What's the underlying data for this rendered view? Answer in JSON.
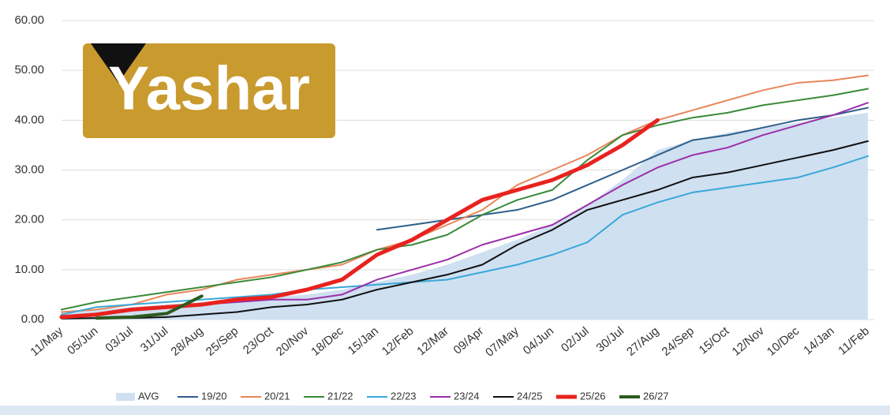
{
  "logo": "Yashar",
  "chart_data": {
    "type": "line",
    "categories": [
      "11/May",
      "05/Jun",
      "03/Jul",
      "31/Jul",
      "28/Aug",
      "25/Sep",
      "23/Oct",
      "20/Nov",
      "18/Dec",
      "15/Jan",
      "12/Feb",
      "12/Mar",
      "09/Apr",
      "07/May",
      "04/Jun",
      "02/Jul",
      "30/Jul",
      "27/Aug",
      "24/Sep",
      "15/Oct",
      "12/Nov",
      "10/Dec",
      "14/Jan",
      "11/Feb"
    ],
    "ylim": [
      0,
      60
    ],
    "yticks": [
      {
        "value": 0,
        "label": "0.00"
      },
      {
        "value": 10,
        "label": "10.00"
      },
      {
        "value": 20,
        "label": "20.00"
      },
      {
        "value": 30,
        "label": "30.00"
      },
      {
        "value": 40,
        "label": "40.00"
      },
      {
        "value": 50,
        "label": "50.00"
      },
      {
        "value": 60,
        "label": "60.00"
      }
    ],
    "grid": true,
    "legend": "bottom",
    "series": [
      {
        "name": "AVG",
        "color": "#cfe0f1",
        "area": true,
        "values": [
          1.5,
          2,
          2.5,
          3,
          3.5,
          4,
          4.5,
          5,
          6,
          7.5,
          9,
          11,
          13.5,
          16,
          19,
          23,
          28,
          34,
          36,
          37.5,
          38.5,
          39.5,
          40.5,
          41.5
        ]
      },
      {
        "name": "19/20",
        "color": "#2e5f8a",
        "values": [
          null,
          null,
          null,
          null,
          null,
          null,
          null,
          null,
          null,
          18,
          19,
          20,
          21,
          22,
          24,
          27,
          30,
          33,
          36,
          37,
          38.5,
          40,
          41,
          42.5
        ]
      },
      {
        "name": "20/21",
        "color": "#e8875a",
        "values": [
          1.5,
          2,
          3,
          5,
          6,
          8,
          9,
          10,
          11,
          14,
          16,
          19,
          22,
          27,
          30,
          33,
          37,
          40,
          42,
          44,
          46,
          47.5,
          48,
          49
        ]
      },
      {
        "name": "21/22",
        "color": "#3a8a3a",
        "values": [
          2,
          3.5,
          4.5,
          5.5,
          6.5,
          7.5,
          8.5,
          10,
          11.5,
          14,
          15,
          17,
          21,
          24,
          26,
          32,
          37,
          39,
          40.5,
          41.5,
          43,
          44,
          45,
          46.3
        ]
      },
      {
        "name": "22/23",
        "color": "#3aa8d8",
        "values": [
          1,
          2.5,
          3,
          3.5,
          4,
          4.5,
          5,
          6,
          6.5,
          7,
          7.5,
          8,
          9.5,
          11,
          13,
          15.5,
          21,
          23.5,
          25.5,
          26.5,
          27.5,
          28.5,
          30.5,
          32.8
        ]
      },
      {
        "name": "23/24",
        "color": "#9b2fa8",
        "values": [
          0.5,
          1,
          2,
          2.5,
          3,
          3.5,
          4,
          4,
          5,
          8,
          10,
          12,
          15,
          17,
          19,
          23,
          27,
          30.5,
          33,
          34.5,
          37,
          39,
          41,
          43.5
        ]
      },
      {
        "name": "24/25",
        "color": "#111111",
        "values": [
          0.2,
          0.3,
          0.3,
          0.5,
          1,
          1.5,
          2.5,
          3,
          4,
          6,
          7.5,
          9,
          11,
          15,
          18,
          22,
          24,
          26,
          28.5,
          29.5,
          31,
          32.5,
          34,
          35.8
        ]
      },
      {
        "name": "25/26",
        "color": "#e8221e",
        "width": 5,
        "values": [
          0.5,
          1,
          2,
          2.5,
          3,
          4,
          4.5,
          6,
          8,
          13,
          16,
          20,
          24,
          26,
          28,
          31,
          35,
          40,
          null,
          null,
          null,
          null,
          null,
          null
        ]
      },
      {
        "name": "26/27",
        "color": "#2d5a1e",
        "width": 4,
        "values": [
          null,
          0.3,
          0.5,
          1.2,
          4.7,
          null,
          null,
          null,
          null,
          null,
          null,
          null,
          null,
          null,
          null,
          null,
          null,
          null,
          null,
          null,
          null,
          null,
          null,
          null
        ]
      }
    ]
  }
}
